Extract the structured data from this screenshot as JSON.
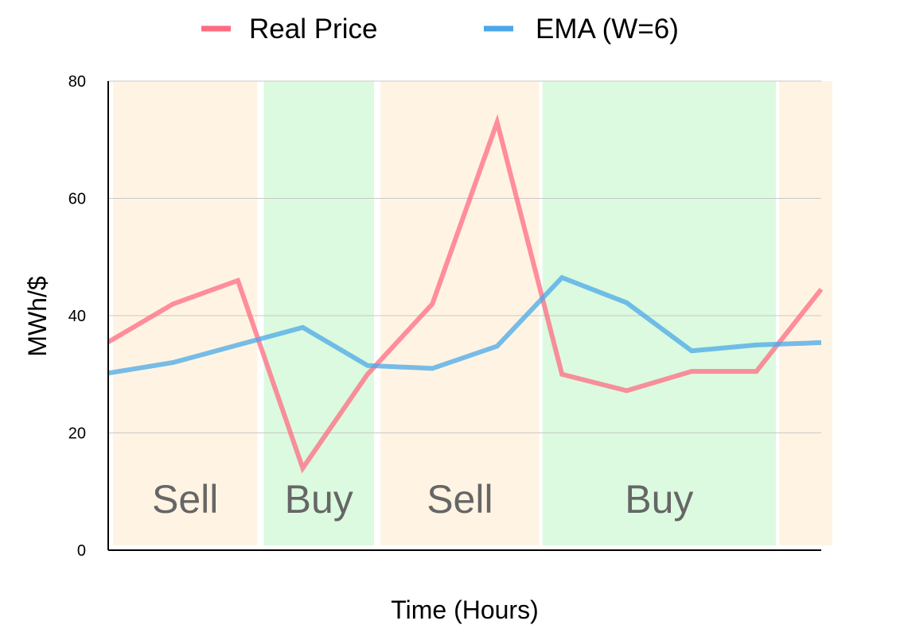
{
  "chart_data": {
    "type": "line",
    "title": "",
    "xlabel": "Time (Hours)",
    "ylabel": "MWh/$",
    "ylim": [
      0,
      80
    ],
    "yticks": [
      0,
      20,
      40,
      60,
      80
    ],
    "xlim": [
      0,
      11
    ],
    "grid": "horizontal",
    "legend_position": "top",
    "x": [
      0,
      1,
      2,
      3,
      4,
      5,
      6,
      7,
      8,
      9,
      10,
      11
    ],
    "series": [
      {
        "name": "Real Price",
        "color": "#ff6b81",
        "values": [
          35.5,
          42,
          46,
          14,
          30,
          42,
          73,
          30,
          27.2,
          30.5,
          30.5,
          44.5
        ]
      },
      {
        "name": "EMA (W=6)",
        "color": "#4aa8e8",
        "values": [
          30.2,
          32,
          35,
          38,
          31.5,
          31,
          34.8,
          46.5,
          42.2,
          34,
          35,
          35.4
        ]
      }
    ],
    "regions": [
      {
        "label": "Sell",
        "start": 0,
        "end": 2.3,
        "color": "#fff4e3"
      },
      {
        "label": "Buy",
        "start": 2.4,
        "end": 4.1,
        "color": "#dcfadf"
      },
      {
        "label": "Sell",
        "start": 4.2,
        "end": 6.65,
        "color": "#fff4e3"
      },
      {
        "label": "Buy",
        "start": 6.7,
        "end": 10.3,
        "color": "#dcfadf"
      },
      {
        "label": "",
        "start": 10.35,
        "end": 11.2,
        "color": "#fff4e3"
      }
    ]
  }
}
